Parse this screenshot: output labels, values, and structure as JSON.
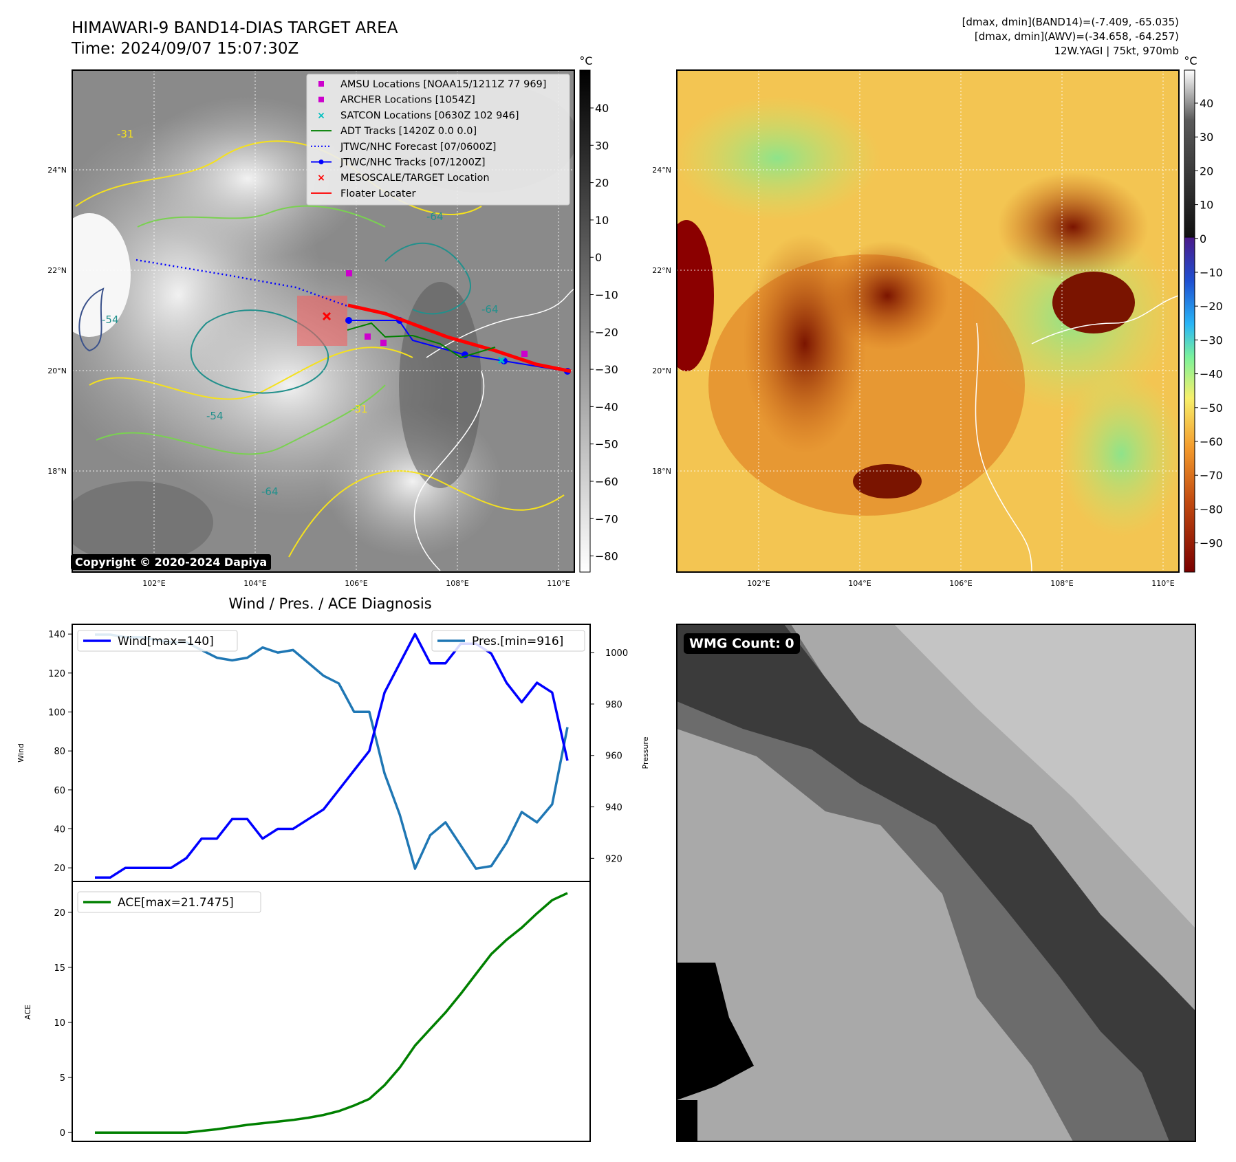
{
  "header": {
    "title_line1": "HIMAWARI-9 BAND14-DIAS TARGET AREA",
    "title_line2": "Time: 2024/09/07 15:07:30Z",
    "stats_line1": "[dmax, dmin](BAND14)=(-7.409, -65.035)",
    "stats_line2": "[dmax, dmin](AWV)=(-34.658, -64.257)",
    "stats_line3": "12W.YAGI | 75kt, 970mb"
  },
  "map": {
    "lon_ticks": [
      "102°E",
      "104°E",
      "106°E",
      "108°E",
      "110°E"
    ],
    "lat_ticks": [
      "24°N",
      "22°N",
      "20°N",
      "18°N"
    ],
    "legend": [
      "AMSU Locations [NOAA15/1211Z 77 969]",
      "ARCHER Locations [1054Z]",
      "SATCON Locations [0630Z 102 946]",
      "ADT Tracks [1420Z 0.0 0.0]",
      "JTWC/NHC Forecast [07/0600Z]",
      "JTWC/NHC Tracks [07/1200Z]",
      "MESOSCALE/TARGET Location",
      "Floater Locater"
    ],
    "contour_labels": [
      "-31",
      "-54",
      "-64"
    ],
    "copyright": "Copyright © 2020-2024 Dapiya",
    "colorbar_unit": "°C",
    "colorbar1_ticks": [
      "40",
      "30",
      "20",
      "10",
      "0",
      "−10",
      "−20",
      "−30",
      "−40",
      "−50",
      "−60",
      "−70",
      "−80"
    ],
    "colorbar2_ticks": [
      "40",
      "30",
      "20",
      "10",
      "0",
      "−10",
      "−20",
      "−30",
      "−40",
      "−50",
      "−60",
      "−70",
      "−80",
      "−90"
    ],
    "colors": {
      "contour_yellow": "#f5e11e",
      "contour_green": "#7ad151",
      "contour_teal": "#22908c",
      "contour_navy": "#3b528b"
    }
  },
  "chart_data": [
    {
      "type": "line",
      "title": "Wind / Pres. / ACE Diagnosis",
      "ylabel": "Wind",
      "ylabel_right": "Pressure",
      "ylim": [
        13,
        145
      ],
      "ylim_right": [
        911,
        1011
      ],
      "y_ticks": [
        "20",
        "40",
        "60",
        "80",
        "100",
        "120",
        "140"
      ],
      "y_ticks_right": [
        "920",
        "940",
        "960",
        "980",
        "1000"
      ],
      "series": [
        {
          "name": "Wind[max=140]",
          "axis": "left",
          "color": "#0000ff",
          "values": [
            15,
            15,
            20,
            20,
            20,
            20,
            25,
            35,
            35,
            45,
            45,
            35,
            40,
            40,
            45,
            50,
            60,
            70,
            80,
            110,
            125,
            140,
            125,
            125,
            135,
            135,
            130,
            115,
            105,
            115,
            110,
            75
          ]
        },
        {
          "name": "Pres.[min=916]",
          "axis": "right",
          "color": "#1f77b4",
          "values": [
            1007,
            1007,
            1006,
            1006,
            1005,
            1004,
            1004,
            1001,
            998,
            997,
            998,
            1002,
            1000,
            1001,
            996,
            991,
            988,
            977,
            977,
            953,
            937,
            916,
            929,
            934,
            925,
            916,
            917,
            926,
            938,
            934,
            941,
            971
          ]
        }
      ]
    },
    {
      "type": "line",
      "ylabel": "ACE",
      "ylim": [
        -0.8,
        22.8
      ],
      "y_ticks": [
        "0",
        "5",
        "10",
        "15",
        "20"
      ],
      "series": [
        {
          "name": "ACE[max=21.7475]",
          "color": "#008000",
          "values": [
            0,
            0,
            0,
            0,
            0,
            0,
            0,
            0.15,
            0.3,
            0.5,
            0.7,
            0.85,
            1.0,
            1.15,
            1.35,
            1.6,
            1.95,
            2.45,
            3.05,
            4.3,
            5.9,
            7.9,
            9.4,
            10.9,
            12.6,
            14.4,
            16.2,
            17.5,
            18.6,
            19.9,
            21.1,
            21.7475
          ]
        }
      ]
    }
  ],
  "wmg_count": "WMG Count: 0"
}
